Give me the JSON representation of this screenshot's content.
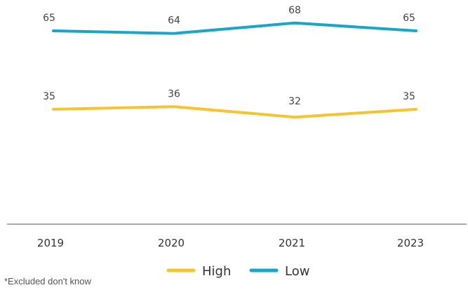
{
  "chart_data": {
    "type": "line",
    "categories": [
      "2019",
      "2020",
      "2021",
      "2023"
    ],
    "series": [
      {
        "name": "Low",
        "values": [
          65,
          64,
          68,
          65
        ],
        "color": "#1aa6c9"
      },
      {
        "name": "High",
        "values": [
          35,
          36,
          32,
          35
        ],
        "color": "#f7c431"
      }
    ],
    "title": "",
    "xlabel": "",
    "ylabel": "",
    "ylim": [
      0,
      100
    ],
    "grid": false,
    "legend_position": "bottom-center"
  },
  "legend": [
    {
      "name": "High",
      "color": "#f7c431"
    },
    {
      "name": "Low",
      "color": "#1aa6c9"
    }
  ],
  "footnote": "*Excluded don't know"
}
